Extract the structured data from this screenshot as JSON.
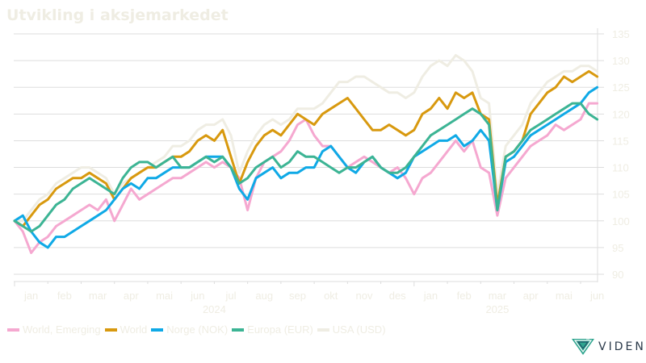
{
  "title": "Utvikling i aksjemarkedet",
  "logo": {
    "text": "VIDEN",
    "icon": "viden-logo-icon"
  },
  "chart_data": {
    "type": "line",
    "title": "Utvikling i aksjemarkedet",
    "xlabel": "",
    "ylabel": "",
    "ylim": [
      90,
      135
    ],
    "yticks": [
      90,
      95,
      100,
      105,
      110,
      115,
      120,
      125,
      130,
      135
    ],
    "grid": true,
    "legend_position": "bottom-left",
    "x_month_ticks": [
      "jan",
      "feb",
      "mar",
      "apr",
      "mai",
      "jun",
      "jul",
      "aug",
      "sep",
      "okt",
      "nov",
      "des",
      "jan",
      "feb",
      "mar",
      "apr",
      "mai",
      "jun"
    ],
    "x_year_labels": [
      {
        "label": "2024",
        "month_index": 6
      },
      {
        "label": "2025",
        "month_index": 14.5
      }
    ],
    "x_unit": "months since start of Jan 2024",
    "x": [
      0,
      0.25,
      0.5,
      0.75,
      1,
      1.25,
      1.5,
      1.75,
      2,
      2.25,
      2.5,
      2.75,
      3,
      3.25,
      3.5,
      3.75,
      4,
      4.25,
      4.5,
      4.75,
      5,
      5.25,
      5.5,
      5.75,
      6,
      6.25,
      6.5,
      6.75,
      7,
      7.25,
      7.5,
      7.75,
      8,
      8.25,
      8.5,
      8.75,
      9,
      9.25,
      9.5,
      9.75,
      10,
      10.25,
      10.5,
      10.75,
      11,
      11.25,
      11.5,
      11.75,
      12,
      12.25,
      12.5,
      12.75,
      13,
      13.25,
      13.5,
      13.75,
      14,
      14.25,
      14.5,
      14.75,
      15,
      15.25,
      15.5,
      15.75,
      16,
      16.25,
      16.5,
      16.75,
      17,
      17.25,
      17.5
    ],
    "series": [
      {
        "name": "World, Emerging",
        "color": "#f5a8d0",
        "values": [
          100,
          98,
          94,
          96,
          97,
          99,
          100,
          101,
          102,
          103,
          102,
          104,
          100,
          103,
          106,
          104,
          105,
          106,
          107,
          108,
          108,
          109,
          110,
          111,
          110,
          111,
          110,
          108,
          102,
          108,
          111,
          112,
          113,
          115,
          118,
          119,
          116,
          114,
          114,
          112,
          110,
          111,
          112,
          111,
          110,
          109,
          110,
          108,
          105,
          108,
          109,
          111,
          113,
          115,
          113,
          115,
          110,
          109,
          101,
          108,
          110,
          112,
          114,
          115,
          116,
          118,
          117,
          118,
          119,
          122,
          122
        ]
      },
      {
        "name": "World",
        "color": "#d8990f",
        "values": [
          100,
          99,
          101,
          103,
          104,
          106,
          107,
          108,
          108,
          109,
          108,
          107,
          104,
          106,
          108,
          109,
          110,
          110,
          111,
          112,
          112,
          113,
          115,
          116,
          115,
          117,
          112,
          107,
          111,
          114,
          116,
          117,
          116,
          118,
          120,
          119,
          118,
          120,
          121,
          122,
          123,
          121,
          119,
          117,
          117,
          118,
          117,
          116,
          117,
          120,
          121,
          123,
          121,
          124,
          123,
          124,
          120,
          119,
          103,
          112,
          113,
          115,
          120,
          122,
          124,
          125,
          127,
          126,
          127,
          128,
          127
        ]
      },
      {
        "name": "Norge (NOK)",
        "color": "#0fa9e6",
        "values": [
          100,
          101,
          98,
          96,
          95,
          97,
          97,
          98,
          99,
          100,
          101,
          102,
          104,
          106,
          107,
          106,
          108,
          108,
          109,
          110,
          110,
          110,
          111,
          112,
          112,
          112,
          110,
          106,
          104,
          108,
          109,
          110,
          108,
          109,
          109,
          110,
          110,
          113,
          114,
          112,
          110,
          109,
          111,
          112,
          110,
          109,
          108,
          109,
          112,
          113,
          114,
          115,
          115,
          116,
          114,
          115,
          117,
          115,
          102,
          111,
          112,
          114,
          116,
          117,
          118,
          119,
          120,
          121,
          122,
          124,
          125
        ]
      },
      {
        "name": "Europa (EUR)",
        "color": "#3cb494",
        "values": [
          100,
          99,
          98,
          99,
          101,
          103,
          104,
          106,
          107,
          108,
          107,
          106,
          105,
          108,
          110,
          111,
          111,
          110,
          111,
          112,
          110,
          110,
          111,
          112,
          111,
          112,
          110,
          107,
          108,
          110,
          111,
          112,
          110,
          111,
          113,
          112,
          112,
          111,
          110,
          109,
          110,
          110,
          111,
          112,
          110,
          109,
          109,
          110,
          112,
          114,
          116,
          117,
          118,
          119,
          120,
          121,
          120,
          118,
          102,
          112,
          113,
          115,
          117,
          118,
          119,
          120,
          121,
          122,
          122,
          120,
          119
        ]
      },
      {
        "name": "USA (USD)",
        "color": "#efede3",
        "values": [
          100,
          100,
          102,
          104,
          105,
          107,
          108,
          109,
          110,
          110,
          109,
          108,
          105,
          107,
          108,
          109,
          110,
          111,
          112,
          114,
          114,
          115,
          117,
          118,
          118,
          119,
          116,
          109,
          113,
          116,
          118,
          119,
          118,
          119,
          121,
          121,
          121,
          122,
          124,
          126,
          126,
          127,
          127,
          126,
          125,
          124,
          124,
          123,
          124,
          127,
          129,
          130,
          129,
          131,
          130,
          128,
          123,
          122,
          105,
          114,
          116,
          118,
          122,
          124,
          126,
          127,
          128,
          128,
          129,
          129,
          128
        ]
      }
    ]
  }
}
